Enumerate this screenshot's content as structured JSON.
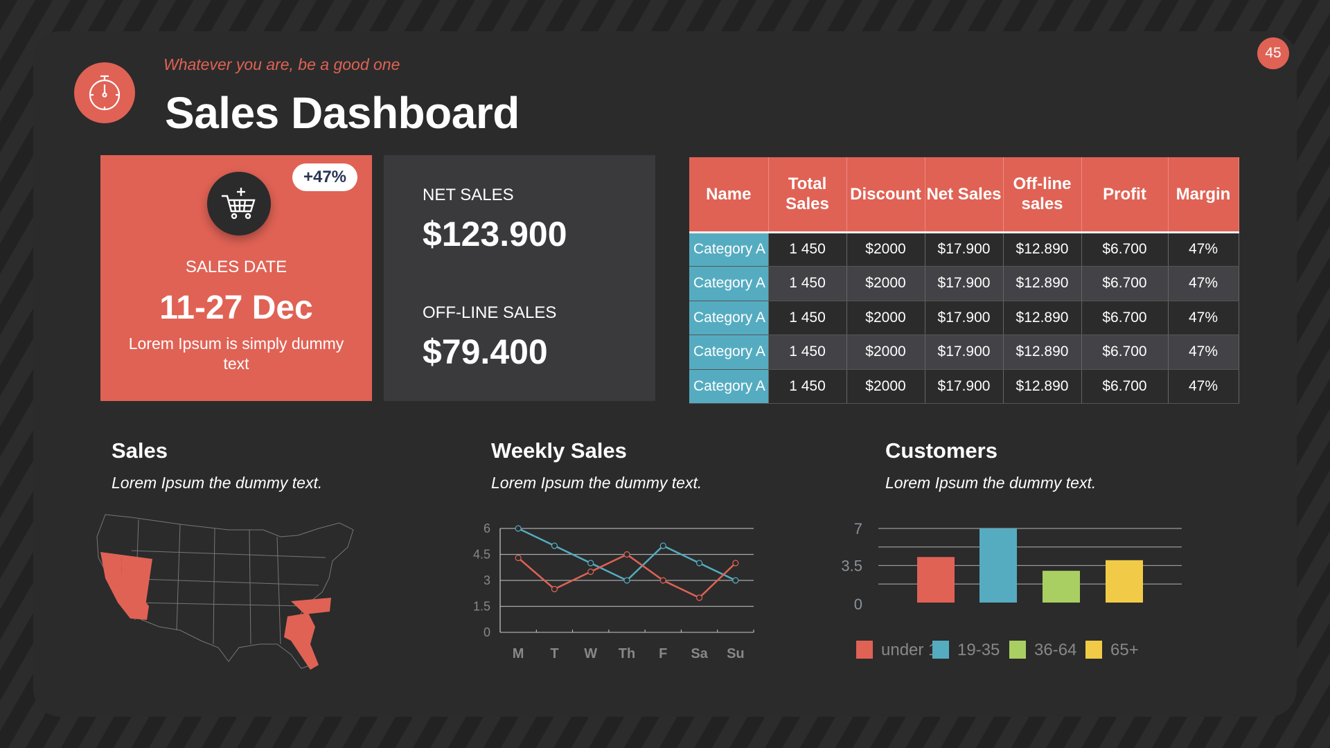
{
  "page_number": "45",
  "header": {
    "tagline": "Whatever you are, be a good one",
    "title": "Sales Dashboard",
    "icon": "stopwatch-icon"
  },
  "sales_card": {
    "badge": "+47%",
    "label": "SALES DATE",
    "date": "11-27 Dec",
    "description": "Lorem Ipsum is simply dummy text",
    "icon": "cart-icon",
    "color": "#e06255"
  },
  "totals_card": {
    "net_label": "NET SALES",
    "net_value": "$123.900",
    "offline_label": "OFF-LINE SALES",
    "offline_value": "$79.400"
  },
  "table": {
    "headers": [
      "Name",
      "Total Sales",
      "Discount",
      "Net Sales",
      "Off-line sales",
      "Profit",
      "Margin"
    ],
    "rows": [
      [
        "Category A",
        "1 450",
        "$2000",
        "$17.900",
        "$12.890",
        "$6.700",
        "47%"
      ],
      [
        "Category A",
        "1 450",
        "$2000",
        "$17.900",
        "$12.890",
        "$6.700",
        "47%"
      ],
      [
        "Category A",
        "1 450",
        "$2000",
        "$17.900",
        "$12.890",
        "$6.700",
        "47%"
      ],
      [
        "Category A",
        "1 450",
        "$2000",
        "$17.900",
        "$12.890",
        "$6.700",
        "47%"
      ],
      [
        "Category A",
        "1 450",
        "$2000",
        "$17.900",
        "$12.890",
        "$6.700",
        "47%"
      ]
    ]
  },
  "sections": {
    "sales": {
      "title": "Sales",
      "subtitle": "Lorem Ipsum the dummy text."
    },
    "weekly": {
      "title": "Weekly Sales",
      "subtitle": "Lorem Ipsum the dummy text."
    },
    "customers": {
      "title": "Customers",
      "subtitle": "Lorem Ipsum the dummy text."
    }
  },
  "chart_data": [
    {
      "type": "line",
      "categories": [
        "M",
        "T",
        "W",
        "Th",
        "F",
        "Sa",
        "Su"
      ],
      "ylim": [
        0,
        6
      ],
      "yticks": [
        "0",
        "1.5",
        "3",
        "4.5",
        "6"
      ],
      "grid": true,
      "series": [
        {
          "color": "#55acc1",
          "values": [
            6,
            5,
            4,
            3,
            5,
            4,
            3
          ]
        },
        {
          "color": "#e06255",
          "values": [
            4.3,
            2.5,
            3.5,
            4.5,
            3,
            2,
            4
          ]
        }
      ]
    },
    {
      "type": "bar",
      "categories": [
        "under 18",
        "19-35",
        "36-64",
        "65+"
      ],
      "values": [
        4.3,
        7,
        3,
        4
      ],
      "colors": [
        "#e06255",
        "#55acc1",
        "#a9cf63",
        "#f1cb47"
      ],
      "ylim": [
        0,
        7
      ],
      "yticks": [
        "0",
        "3.5",
        "7"
      ],
      "grid": true,
      "legend": "bottom"
    }
  ],
  "map": {
    "type": "usa-choropleth",
    "highlight_color": "#e06255"
  }
}
